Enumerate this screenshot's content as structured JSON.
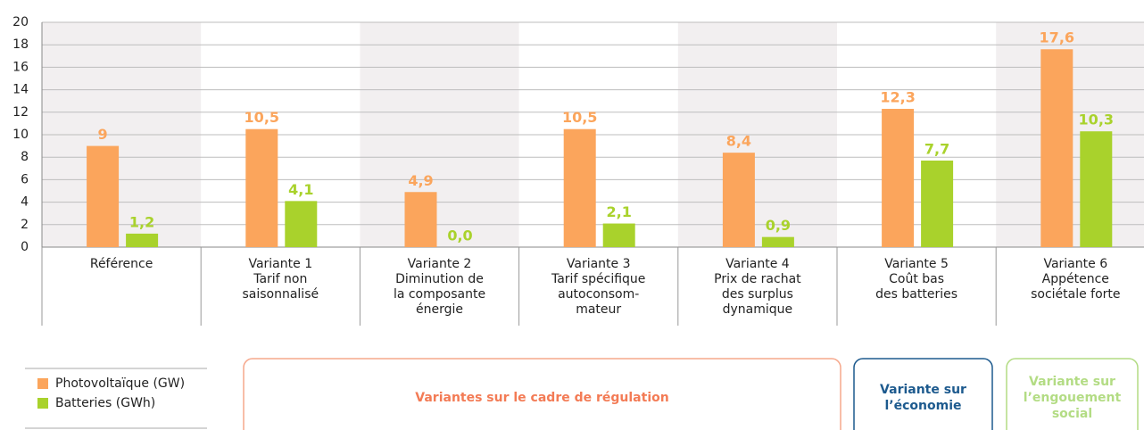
{
  "chart_data": {
    "type": "bar",
    "categories": [
      [
        "Référence"
      ],
      [
        "Variante 1",
        "Tarif non",
        "saisonnalisé"
      ],
      [
        "Variante 2",
        "Diminution de",
        "la composante",
        "énergie"
      ],
      [
        "Variante 3",
        "Tarif spécifique",
        "autoconsom-",
        "mateur"
      ],
      [
        "Variante 4",
        "Prix de rachat",
        "des surplus",
        "dynamique"
      ],
      [
        "Variante 5",
        "Coût bas",
        "des batteries"
      ],
      [
        "Variante 6",
        "Appétence",
        "sociétale forte"
      ]
    ],
    "series": [
      {
        "name": "Photovoltaïque (GW)",
        "color": "#fba55c",
        "values": [
          9,
          10.5,
          4.9,
          10.5,
          8.4,
          12.3,
          17.6
        ],
        "value_labels": [
          "9",
          "10,5",
          "4,9",
          "10,5",
          "8,4",
          "12,3",
          "17,6"
        ]
      },
      {
        "name": "Batteries (GWh)",
        "color": "#a9d22c",
        "values": [
          1.2,
          4.1,
          0.0,
          2.1,
          0.9,
          7.7,
          10.3
        ],
        "value_labels": [
          "1,2",
          "4,1",
          "0,0",
          "2,1",
          "0,9",
          "7,7",
          "10,3"
        ]
      }
    ],
    "ylim": [
      0,
      20
    ],
    "yticks": [
      0,
      2,
      4,
      6,
      8,
      10,
      12,
      14,
      16,
      18,
      20
    ],
    "grid": true,
    "groups": [
      {
        "label": [
          "Variantes sur le cadre de régulation"
        ],
        "color": "#f37b55",
        "border": "#f6a88c"
      },
      {
        "label": [
          "Variante sur",
          "l’économie"
        ],
        "color": "#1d5a8e",
        "border": "#1d5a8e"
      },
      {
        "label": [
          "Variante sur",
          "l’engouement",
          "social"
        ],
        "color": "#b3dc84",
        "border": "#b3dc84"
      }
    ]
  }
}
